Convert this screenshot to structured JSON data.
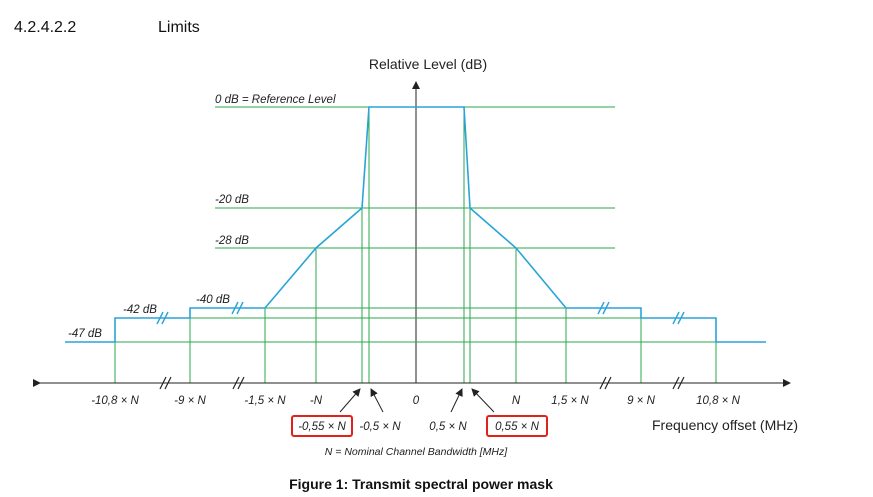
{
  "header": {
    "number": "4.2.4.2.2",
    "title": "Limits"
  },
  "diagram": {
    "y_axis_label": "Relative Level (dB)",
    "levels": [
      "0 dB = Reference Level",
      "-20 dB",
      "-28 dB",
      "-40 dB",
      "-42 dB",
      "-47 dB"
    ],
    "x_labels": [
      "-10,8 × N",
      "-9 × N",
      "-1,5 × N",
      "-N",
      "-0,55 × N",
      "-0,5 × N",
      "0",
      "0,5 × N",
      "0,55 × N",
      "N",
      "1,5 × N",
      "9 × N",
      "10,8 × N"
    ],
    "x_axis_label": "Frequency offset (MHz)",
    "note": "N = Nominal Channel Bandwidth [MHz]"
  },
  "caption": "Figure 1: Transmit spectral power mask"
}
